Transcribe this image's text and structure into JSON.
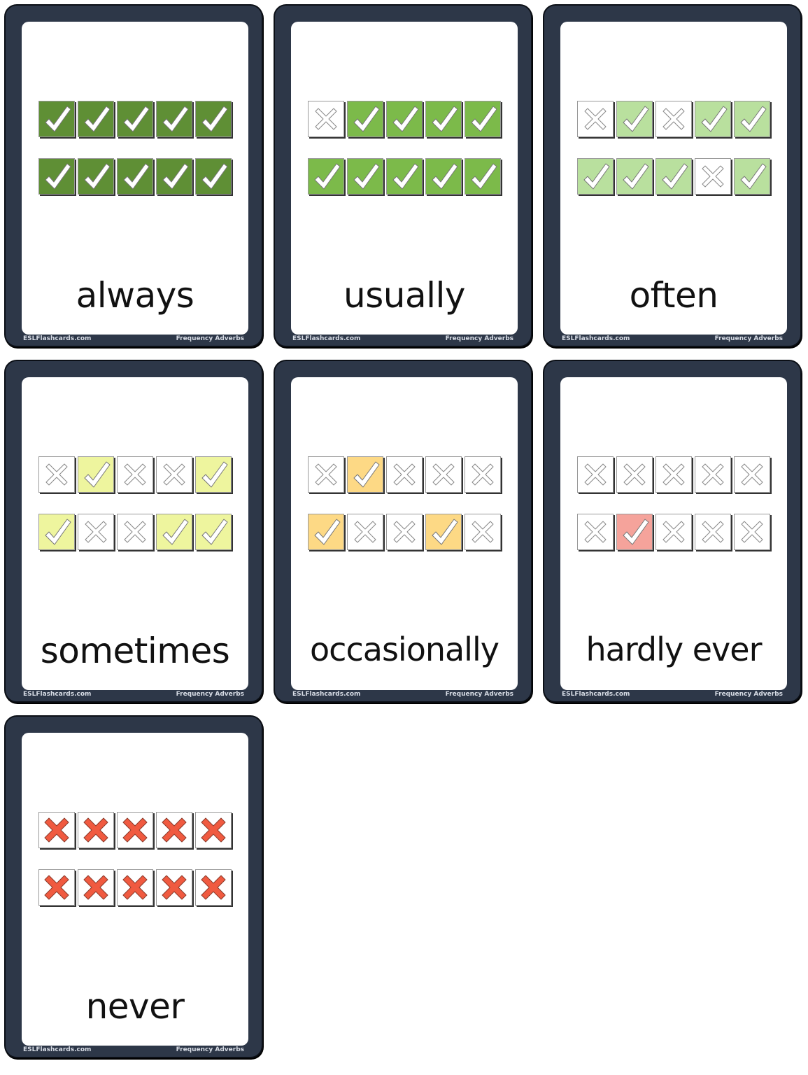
{
  "footer": {
    "site": "ESLFlashcards.com",
    "topic": "Frequency Adverbs"
  },
  "cards": [
    {
      "word": "always",
      "color": "#5f8f35",
      "rows": [
        "ccccc",
        "ccccc"
      ]
    },
    {
      "word": "usually",
      "color": "#7cba4a",
      "rows": [
        "xcccc",
        "ccccc"
      ]
    },
    {
      "word": "often",
      "color": "#b9e09e",
      "rows": [
        "xcxcc",
        "cccxc"
      ]
    },
    {
      "word": "sometimes",
      "color": "#eef59e",
      "rows": [
        "xcxxc",
        "cxxcc"
      ]
    },
    {
      "word": "occasionally",
      "color": "#fdd985",
      "rows": [
        "xcxxx",
        "cxxcx"
      ]
    },
    {
      "word": "hardly ever",
      "color": "#f5a39b",
      "rows": [
        "xxxxx",
        "xcxxx"
      ]
    },
    {
      "word": "never",
      "color": "#f05a40",
      "rows": [
        "RRRRR",
        "RRRRR"
      ]
    }
  ],
  "icons": {
    "check": "check-icon",
    "cross": "cross-icon"
  }
}
